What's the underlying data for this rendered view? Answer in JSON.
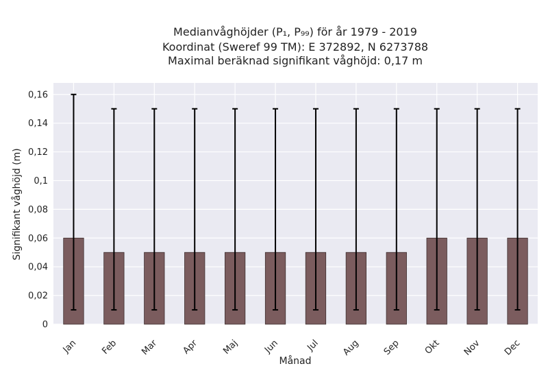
{
  "chart_data": {
    "type": "bar",
    "title_lines": [
      "Medianvåghöjder (P₁, P₉₉) för år 1979 - 2019",
      "Koordinat (Sweref 99 TM): E 372892, N 6273788",
      "Maximal beräknad signifikant våghöjd: 0,17 m"
    ],
    "xlabel": "Månad",
    "ylabel": "Signifikant våghöjd (m)",
    "categories": [
      "Jan",
      "Feb",
      "Mar",
      "Apr",
      "Maj",
      "Jun",
      "Jul",
      "Aug",
      "Sep",
      "Okt",
      "Nov",
      "Dec"
    ],
    "values": [
      0.06,
      0.05,
      0.05,
      0.05,
      0.05,
      0.05,
      0.05,
      0.05,
      0.05,
      0.06,
      0.06,
      0.06
    ],
    "error_low": [
      0.01,
      0.01,
      0.01,
      0.01,
      0.01,
      0.01,
      0.01,
      0.01,
      0.01,
      0.01,
      0.01,
      0.01
    ],
    "error_high": [
      0.16,
      0.15,
      0.15,
      0.15,
      0.15,
      0.15,
      0.15,
      0.15,
      0.15,
      0.15,
      0.15,
      0.15
    ],
    "y_ticks": [
      0,
      0.02,
      0.04,
      0.06,
      0.08,
      0.1,
      0.12,
      0.14,
      0.16
    ],
    "y_tick_labels": [
      "0",
      "0,02",
      "0,04",
      "0,06",
      "0,08",
      "0,1",
      "0,12",
      "0,14",
      "0,16"
    ],
    "ylim": [
      0,
      0.168
    ],
    "grid": true,
    "colors": {
      "bar": "#7b5c5e",
      "bar_edge": "#3e2f30",
      "plot_bg": "#eaeaf2",
      "grid": "#ffffff",
      "error": "#000000"
    }
  }
}
